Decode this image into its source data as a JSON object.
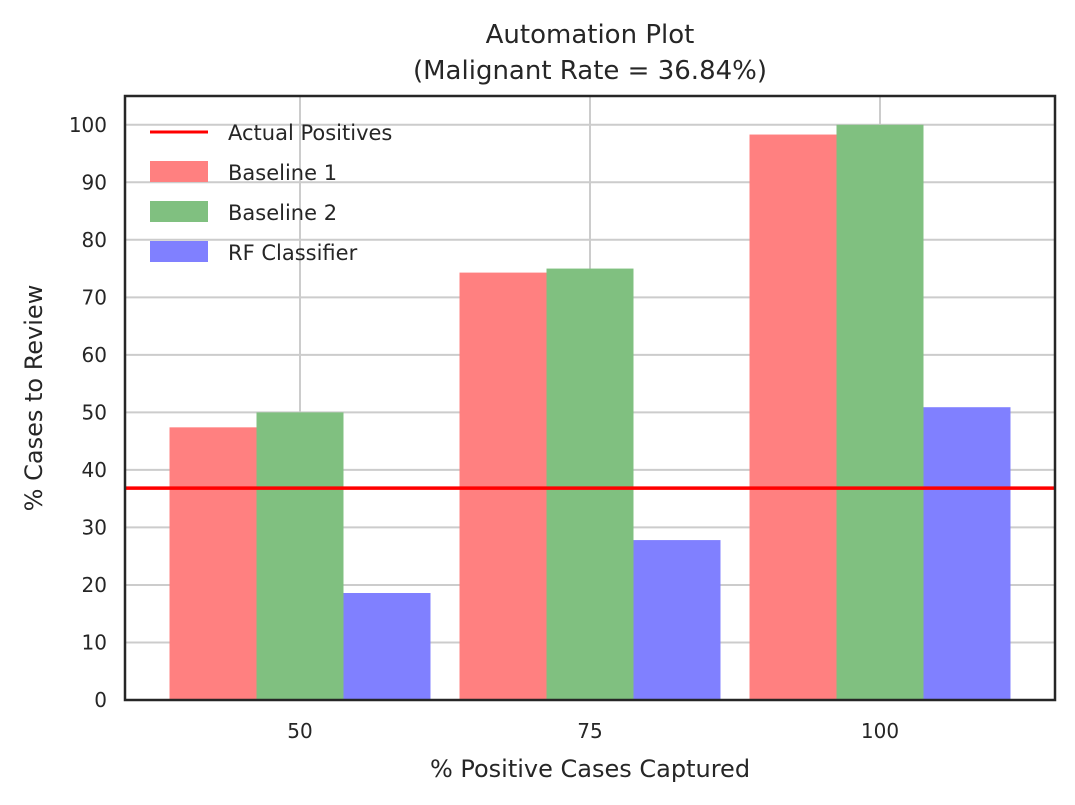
{
  "chart_data": {
    "type": "bar",
    "title": "Automation Plot",
    "subtitle": "(Malignant Rate = 36.84%)",
    "xlabel": "% Positive Cases Captured",
    "ylabel": "% Cases to Review",
    "categories": [
      "50",
      "75",
      "100"
    ],
    "ylim": [
      0,
      105
    ],
    "yticks": [
      0,
      10,
      20,
      30,
      40,
      50,
      60,
      70,
      80,
      90,
      100
    ],
    "grid": true,
    "legend_position": "top-left",
    "series": [
      {
        "name": "Baseline 1",
        "color": "#ff8080",
        "values": [
          47.4,
          74.3,
          98.3
        ]
      },
      {
        "name": "Baseline 2",
        "color": "#80c080",
        "values": [
          50.0,
          75.0,
          100.0
        ]
      },
      {
        "name": "RF Classifier",
        "color": "#8080ff",
        "values": [
          18.6,
          27.8,
          50.9
        ]
      }
    ],
    "reference_line": {
      "name": "Actual Positives",
      "color": "#ff0000",
      "value": 36.84
    }
  }
}
